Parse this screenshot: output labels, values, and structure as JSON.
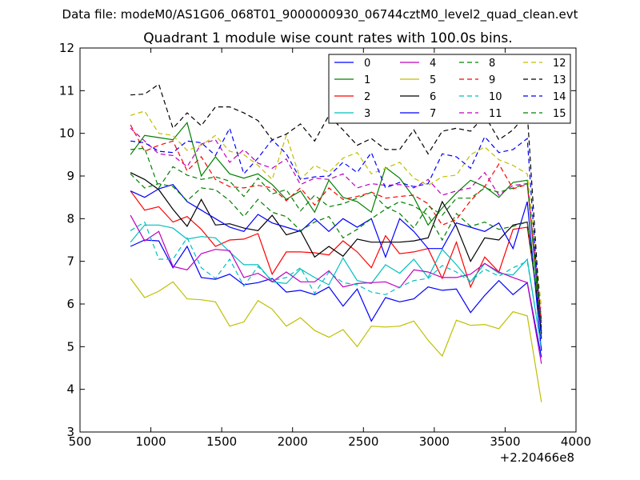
{
  "figure": {
    "suptitle": "Data file: modeM0/AS1G06_068T01_9000000930_06744cztM0_level2_quad_clean.evt",
    "x_offset_label": "+2.20466e8"
  },
  "chart_data": {
    "type": "line",
    "title": "Quadrant 1 module wise count rates with 100.0s bins.",
    "xlabel": "",
    "ylabel": "",
    "xlim": [
      500,
      4000
    ],
    "ylim": [
      3,
      12
    ],
    "x_ticks": [
      "500",
      "1000",
      "1500",
      "2000",
      "2500",
      "3000",
      "3500",
      "4000"
    ],
    "y_ticks": [
      "3",
      "4",
      "5",
      "6",
      "7",
      "8",
      "9",
      "10",
      "11",
      "12"
    ],
    "grid": false,
    "legend_position": "top-right",
    "x": [
      856,
      956,
      1056,
      1156,
      1256,
      1356,
      1456,
      1556,
      1656,
      1756,
      1856,
      1956,
      2056,
      2156,
      2256,
      2356,
      2456,
      2556,
      2656,
      2756,
      2856,
      2956,
      3056,
      3156,
      3256,
      3356,
      3456,
      3556,
      3656,
      3756
    ],
    "series": [
      {
        "name": "0",
        "color": "#0000ff",
        "dash": "solid",
        "values": [
          7.35,
          7.5,
          7.48,
          6.85,
          7.35,
          6.62,
          6.58,
          6.7,
          6.45,
          6.5,
          6.6,
          6.28,
          6.32,
          6.22,
          6.4,
          5.95,
          6.35,
          5.6,
          6.15,
          6.05,
          6.12,
          6.4,
          6.32,
          6.35,
          5.8,
          6.2,
          6.55,
          6.22,
          6.5,
          4.75
        ]
      },
      {
        "name": "1",
        "color": "#008000",
        "dash": "solid",
        "values": [
          9.5,
          9.95,
          9.9,
          9.85,
          10.25,
          9.0,
          9.45,
          9.05,
          8.95,
          9.05,
          8.8,
          8.45,
          8.65,
          8.15,
          8.9,
          8.5,
          8.4,
          8.15,
          9.2,
          8.95,
          8.5,
          7.85,
          8.25,
          8.6,
          8.9,
          8.75,
          8.5,
          8.85,
          8.9,
          5.2
        ]
      },
      {
        "name": "2",
        "color": "#ff0000",
        "dash": "solid",
        "values": [
          8.65,
          8.2,
          8.28,
          7.92,
          8.05,
          7.75,
          7.35,
          7.5,
          7.52,
          7.65,
          6.7,
          7.22,
          7.22,
          7.2,
          7.15,
          7.48,
          7.22,
          6.85,
          7.6,
          7.18,
          7.22,
          7.3,
          6.6,
          7.45,
          6.4,
          7.1,
          6.75,
          7.75,
          7.8,
          5.55
        ]
      },
      {
        "name": "3",
        "color": "#00bfbf",
        "dash": "solid",
        "values": [
          7.45,
          7.85,
          7.85,
          7.78,
          7.52,
          7.58,
          7.55,
          7.22,
          6.92,
          6.92,
          6.52,
          6.48,
          6.82,
          6.62,
          6.45,
          7.08,
          6.55,
          6.48,
          6.92,
          6.72,
          7.05,
          6.62,
          7.28,
          6.92,
          6.52,
          6.95,
          6.72,
          6.68,
          7.05,
          4.95
        ]
      },
      {
        "name": "4",
        "color": "#bf00bf",
        "dash": "solid",
        "values": [
          8.08,
          7.48,
          7.7,
          6.88,
          6.8,
          7.18,
          7.28,
          7.25,
          6.62,
          6.72,
          6.52,
          6.75,
          6.52,
          6.52,
          6.78,
          6.4,
          6.48,
          6.5,
          6.52,
          6.38,
          6.8,
          6.75,
          6.62,
          6.62,
          6.7,
          6.95,
          6.75,
          6.62,
          6.5,
          4.6
        ]
      },
      {
        "name": "5",
        "color": "#bfbf00",
        "dash": "solid",
        "values": [
          6.6,
          6.15,
          6.3,
          6.52,
          6.12,
          6.1,
          6.05,
          5.48,
          5.58,
          6.08,
          5.88,
          5.48,
          5.68,
          5.38,
          5.22,
          5.4,
          5.0,
          5.48,
          5.46,
          5.48,
          5.6,
          5.15,
          4.78,
          5.62,
          5.5,
          5.52,
          5.42,
          5.82,
          5.72,
          3.7
        ]
      },
      {
        "name": "6",
        "color": "#000000",
        "dash": "solid",
        "values": [
          9.08,
          8.92,
          8.68,
          8.22,
          7.82,
          8.45,
          7.85,
          7.88,
          7.78,
          7.72,
          8.08,
          7.62,
          7.72,
          7.1,
          7.35,
          7.12,
          7.52,
          7.45,
          7.45,
          7.45,
          7.48,
          7.55,
          8.4,
          7.82,
          7.0,
          7.55,
          7.5,
          7.85,
          7.92,
          5.35
        ]
      },
      {
        "name": "7",
        "color": "#0000ff",
        "dash": "solid",
        "values": [
          8.65,
          8.5,
          8.7,
          8.8,
          8.4,
          8.2,
          8.0,
          7.8,
          7.7,
          8.1,
          7.9,
          7.8,
          7.7,
          8.0,
          7.7,
          8.0,
          7.8,
          8.0,
          7.1,
          8.0,
          7.7,
          7.3,
          7.3,
          7.9,
          7.8,
          7.7,
          7.9,
          7.3,
          8.4,
          4.9
        ]
      },
      {
        "name": "8",
        "color": "#008000",
        "dash": "dashed",
        "values": [
          9.05,
          8.72,
          8.82,
          8.75,
          8.42,
          8.72,
          8.68,
          8.42,
          8.05,
          8.45,
          8.15,
          8.05,
          7.72,
          7.92,
          8.05,
          7.55,
          7.75,
          8.0,
          8.22,
          8.4,
          8.3,
          8.08,
          7.5,
          8.12,
          7.82,
          7.92,
          7.75,
          7.82,
          7.92,
          5.45
        ]
      },
      {
        "name": "9",
        "color": "#ff0000",
        "dash": "dashed",
        "values": [
          10.2,
          9.58,
          9.72,
          9.82,
          9.12,
          9.45,
          8.92,
          8.75,
          8.72,
          8.78,
          8.72,
          8.42,
          8.72,
          8.32,
          8.72,
          8.45,
          8.52,
          8.62,
          8.48,
          8.52,
          8.55,
          8.35,
          7.85,
          7.98,
          8.42,
          8.75,
          9.28,
          8.7,
          8.8,
          5.6
        ]
      },
      {
        "name": "10",
        "color": "#00bfbf",
        "dash": "dashed",
        "values": [
          7.72,
          7.92,
          7.05,
          7.05,
          7.55,
          6.85,
          6.6,
          7.05,
          6.42,
          6.88,
          6.55,
          6.62,
          6.85,
          6.25,
          6.75,
          6.5,
          6.45,
          6.28,
          6.22,
          6.4,
          6.55,
          6.6,
          6.9,
          6.75,
          6.52,
          6.82,
          6.65,
          6.85,
          7.0,
          5.0
        ]
      },
      {
        "name": "11",
        "color": "#bf00bf",
        "dash": "dashed",
        "values": [
          10.12,
          9.82,
          9.52,
          9.48,
          9.22,
          9.75,
          9.85,
          9.32,
          9.62,
          9.3,
          9.18,
          9.4,
          8.8,
          8.95,
          8.92,
          9.05,
          8.72,
          8.82,
          8.78,
          8.8,
          8.72,
          8.92,
          8.55,
          8.65,
          8.72,
          9.08,
          8.55,
          8.78,
          8.82,
          5.65
        ]
      },
      {
        "name": "12",
        "color": "#bfbf00",
        "dash": "dashed",
        "values": [
          10.42,
          10.52,
          10.0,
          9.95,
          9.6,
          9.72,
          9.95,
          9.58,
          9.5,
          9.25,
          8.92,
          9.95,
          8.92,
          9.25,
          9.08,
          9.42,
          9.55,
          9.05,
          9.18,
          9.32,
          8.95,
          8.78,
          8.98,
          9.02,
          9.5,
          9.68,
          9.38,
          9.25,
          9.05,
          5.9
        ]
      },
      {
        "name": "13",
        "color": "#000000",
        "dash": "dashed",
        "values": [
          10.9,
          10.92,
          11.15,
          10.12,
          10.48,
          10.18,
          10.62,
          10.62,
          10.48,
          10.3,
          9.85,
          9.98,
          10.22,
          9.82,
          10.42,
          10.08,
          9.72,
          9.88,
          9.62,
          9.62,
          10.08,
          9.52,
          10.05,
          10.12,
          10.05,
          10.42,
          9.85,
          10.08,
          10.48,
          5.3
        ]
      },
      {
        "name": "14",
        "color": "#0000ff",
        "dash": "dashed",
        "values": [
          9.82,
          9.78,
          9.58,
          9.55,
          9.82,
          9.78,
          9.48,
          10.12,
          9.05,
          9.42,
          9.85,
          9.52,
          8.92,
          8.98,
          9.0,
          9.32,
          9.08,
          9.55,
          8.72,
          8.85,
          8.75,
          8.82,
          9.52,
          9.45,
          9.18,
          9.92,
          9.55,
          9.62,
          9.88,
          5.15
        ]
      },
      {
        "name": "15",
        "color": "#008000",
        "dash": "dashed",
        "values": [
          9.62,
          9.65,
          8.72,
          9.22,
          9.02,
          8.92,
          8.98,
          8.88,
          8.52,
          8.95,
          8.58,
          8.68,
          8.18,
          8.55,
          8.28,
          8.35,
          8.48,
          8.62,
          8.28,
          8.12,
          7.78,
          8.3,
          8.08,
          8.48,
          8.48,
          8.72,
          8.62,
          8.72,
          8.82,
          5.5
        ]
      }
    ]
  }
}
